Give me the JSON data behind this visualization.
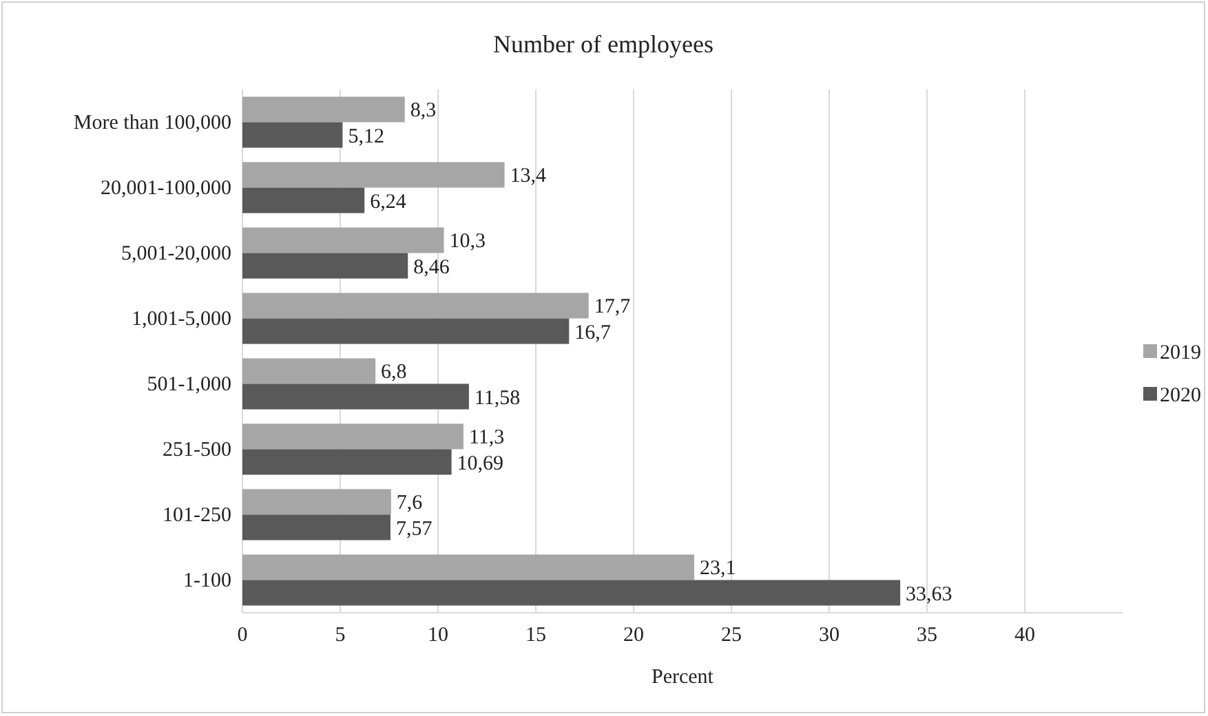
{
  "chart_data": {
    "type": "bar",
    "orientation": "horizontal",
    "title": "Number of employees",
    "xlabel": "Percent",
    "categories": [
      "More than 100,000",
      "20,001-100,000",
      "5,001-20,000",
      "1,001-5,000",
      "501-1,000",
      "251-500",
      "101-250",
      "1-100"
    ],
    "series": [
      {
        "name": "2019",
        "color": "#a6a6a6",
        "values": [
          8.3,
          13.4,
          10.3,
          17.7,
          6.8,
          11.3,
          7.6,
          23.1
        ],
        "value_labels": [
          "8,3",
          "13,4",
          "10,3",
          "17,7",
          "6,8",
          "11,3",
          "7,6",
          "23,1"
        ]
      },
      {
        "name": "2020",
        "color": "#595959",
        "values": [
          5.12,
          6.24,
          8.46,
          16.7,
          11.58,
          10.69,
          7.57,
          33.63
        ],
        "value_labels": [
          "5,12",
          "6,24",
          "8,46",
          "16,7",
          "11,58",
          "10,69",
          "7,57",
          "33,63"
        ]
      }
    ],
    "xlim": [
      0,
      45
    ],
    "xticks": [
      0,
      5,
      10,
      15,
      20,
      25,
      30,
      35,
      40
    ],
    "grid": "x",
    "legend": "right"
  }
}
